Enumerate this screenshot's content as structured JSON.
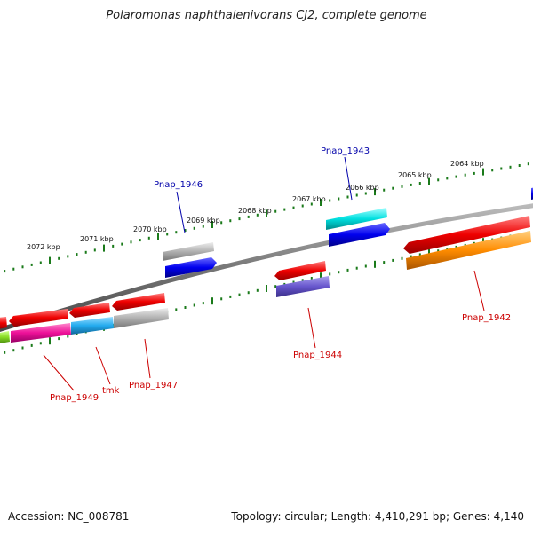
{
  "title": "Polaromonas naphthalenivorans CJ2, complete genome",
  "footer": {
    "accession": "Accession: NC_008781",
    "summary": "Topology: circular; Length: 4,410,291 bp; Genes: 4,140"
  },
  "ruler": {
    "labels": [
      "2072 kbp",
      "2071 kbp",
      "2070 kbp",
      "2069 kbp",
      "2068 kbp",
      "2067 kbp",
      "2066 kbp",
      "2065 kbp",
      "2064 kbp"
    ]
  },
  "gene_labels": {
    "forward": [
      "Pnap_1946",
      "Pnap_1943"
    ],
    "reverse": [
      "Pnap_1949",
      "tmk",
      "Pnap_1947",
      "Pnap_1944",
      "Pnap_1942"
    ]
  },
  "colors": {
    "backbone": "#808080",
    "tick": "#1a7a1a",
    "forward_label": "#0000aa",
    "reverse_label": "#cc0000",
    "gene_red": "#ee0000",
    "gene_blue": "#0000ee",
    "gene_cyan": "#00d8d8",
    "gene_gray": "#aaaaaa",
    "gene_orange": "#ff8800",
    "gene_magenta": "#ee1199",
    "gene_sky": "#22aaee",
    "gene_purple": "#6655cc",
    "gene_green": "#88dd22"
  }
}
